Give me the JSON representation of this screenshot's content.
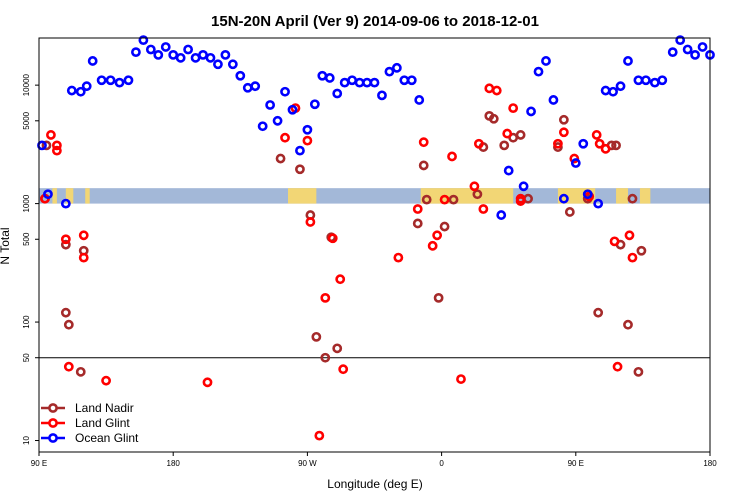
{
  "chart_data": {
    "type": "scatter",
    "title": "15N-20N April (Ver 9)   2014-09-06 to 2018-12-01",
    "xlabel": "Longitude (deg E)",
    "ylabel": "N Total",
    "x_scale": "linear",
    "y_scale": "log",
    "xlim": [
      90,
      540
    ],
    "ylim": [
      8,
      25000
    ],
    "x_ticks": [
      {
        "value": 90,
        "label": "90 E"
      },
      {
        "value": 180,
        "label": "180"
      },
      {
        "value": 270,
        "label": "90 W"
      },
      {
        "value": 360,
        "label": "0"
      },
      {
        "value": 450,
        "label": "90 E"
      },
      {
        "value": 540,
        "label": "180"
      }
    ],
    "y_ticks": [
      {
        "value": 10,
        "label": "10"
      },
      {
        "value": 50,
        "label": "50"
      },
      {
        "value": 100,
        "label": "100"
      },
      {
        "value": 500,
        "label": "500"
      },
      {
        "value": 1000,
        "label": "1000"
      },
      {
        "value": 5000,
        "label": "5000"
      },
      {
        "value": 10000,
        "label": "10000"
      }
    ],
    "reference_line": 50,
    "legend_position": "bottom-left",
    "colors": {
      "land_nadir": "#a52a2a",
      "land_glint": "#ff0000",
      "ocean_glint": "#0000ff",
      "ocean_band": "#a3b8d8",
      "land_band": "#f2d675"
    },
    "series": [
      {
        "name": "Land Nadir",
        "color": "#a52a2a",
        "points": [
          [
            94,
            1100
          ],
          [
            95,
            3100
          ],
          [
            108,
            450
          ],
          [
            108,
            120
          ],
          [
            110,
            95
          ],
          [
            118,
            38
          ],
          [
            120,
            400
          ],
          [
            252,
            2400
          ],
          [
            265,
            1950
          ],
          [
            272,
            800
          ],
          [
            276,
            75
          ],
          [
            282,
            50
          ],
          [
            286,
            520
          ],
          [
            290,
            60
          ],
          [
            344,
            680
          ],
          [
            348,
            2100
          ],
          [
            350,
            1080
          ],
          [
            358,
            160
          ],
          [
            362,
            640
          ],
          [
            368,
            1080
          ],
          [
            384,
            1200
          ],
          [
            388,
            3000
          ],
          [
            392,
            5500
          ],
          [
            395,
            5200
          ],
          [
            402,
            3100
          ],
          [
            408,
            3600
          ],
          [
            413,
            3800
          ],
          [
            418,
            1100
          ],
          [
            438,
            3000
          ],
          [
            442,
            5100
          ],
          [
            446,
            850
          ],
          [
            458,
            1100
          ],
          [
            465,
            120
          ],
          [
            474,
            3100
          ],
          [
            477,
            3100
          ],
          [
            480,
            450
          ],
          [
            485,
            95
          ],
          [
            488,
            1100
          ],
          [
            492,
            38
          ],
          [
            494,
            400
          ]
        ]
      },
      {
        "name": "Land Glint",
        "color": "#ff0000",
        "points": [
          [
            94,
            1100
          ],
          [
            98,
            3800
          ],
          [
            102,
            3100
          ],
          [
            102,
            2800
          ],
          [
            108,
            500
          ],
          [
            110,
            42
          ],
          [
            120,
            540
          ],
          [
            120,
            350
          ],
          [
            135,
            32
          ],
          [
            203,
            31
          ],
          [
            255,
            3600
          ],
          [
            262,
            6400
          ],
          [
            270,
            3400
          ],
          [
            272,
            700
          ],
          [
            278,
            11
          ],
          [
            282,
            160
          ],
          [
            287,
            510
          ],
          [
            292,
            230
          ],
          [
            294,
            40
          ],
          [
            331,
            350
          ],
          [
            344,
            900
          ],
          [
            348,
            3300
          ],
          [
            354,
            440
          ],
          [
            357,
            540
          ],
          [
            362,
            1080
          ],
          [
            367,
            2500
          ],
          [
            373,
            33
          ],
          [
            382,
            1400
          ],
          [
            385,
            3200
          ],
          [
            388,
            900
          ],
          [
            392,
            9400
          ],
          [
            397,
            9000
          ],
          [
            404,
            3900
          ],
          [
            408,
            6400
          ],
          [
            413,
            1100
          ],
          [
            413,
            1050
          ],
          [
            438,
            3200
          ],
          [
            442,
            4000
          ],
          [
            449,
            2400
          ],
          [
            459,
            1150
          ],
          [
            464,
            3800
          ],
          [
            466,
            3200
          ],
          [
            470,
            2900
          ],
          [
            476,
            480
          ],
          [
            478,
            42
          ],
          [
            486,
            540
          ],
          [
            488,
            350
          ]
        ]
      },
      {
        "name": "Ocean Glint",
        "color": "#0000ff",
        "points": [
          [
            92,
            3100
          ],
          [
            96,
            1200
          ],
          [
            108,
            1000
          ],
          [
            112,
            9000
          ],
          [
            118,
            8800
          ],
          [
            122,
            9800
          ],
          [
            126,
            16000
          ],
          [
            132,
            11000
          ],
          [
            138,
            11000
          ],
          [
            144,
            10500
          ],
          [
            150,
            11000
          ],
          [
            155,
            19000
          ],
          [
            160,
            24000
          ],
          [
            165,
            20000
          ],
          [
            170,
            18000
          ],
          [
            175,
            21000
          ],
          [
            180,
            18000
          ],
          [
            185,
            17000
          ],
          [
            190,
            20000
          ],
          [
            195,
            17000
          ],
          [
            200,
            18000
          ],
          [
            205,
            17000
          ],
          [
            210,
            15000
          ],
          [
            215,
            18000
          ],
          [
            220,
            15000
          ],
          [
            225,
            12000
          ],
          [
            230,
            9500
          ],
          [
            235,
            9800
          ],
          [
            240,
            4500
          ],
          [
            245,
            6800
          ],
          [
            250,
            5000
          ],
          [
            255,
            8800
          ],
          [
            260,
            6200
          ],
          [
            265,
            2800
          ],
          [
            270,
            4200
          ],
          [
            275,
            6900
          ],
          [
            280,
            12000
          ],
          [
            285,
            11500
          ],
          [
            290,
            8500
          ],
          [
            295,
            10500
          ],
          [
            300,
            11000
          ],
          [
            305,
            10500
          ],
          [
            310,
            10500
          ],
          [
            315,
            10500
          ],
          [
            320,
            8200
          ],
          [
            325,
            13000
          ],
          [
            330,
            14000
          ],
          [
            335,
            11000
          ],
          [
            340,
            11000
          ],
          [
            345,
            7500
          ],
          [
            400,
            800
          ],
          [
            405,
            1900
          ],
          [
            415,
            1400
          ],
          [
            420,
            6000
          ],
          [
            425,
            13000
          ],
          [
            430,
            16000
          ],
          [
            435,
            7500
          ],
          [
            442,
            1100
          ],
          [
            450,
            2200
          ],
          [
            455,
            3200
          ],
          [
            458,
            1200
          ],
          [
            465,
            1000
          ],
          [
            470,
            9000
          ],
          [
            475,
            8800
          ],
          [
            480,
            9800
          ],
          [
            485,
            16000
          ],
          [
            492,
            11000
          ],
          [
            497,
            11000
          ],
          [
            503,
            10500
          ],
          [
            508,
            11000
          ],
          [
            515,
            19000
          ],
          [
            520,
            24000
          ],
          [
            525,
            20000
          ],
          [
            530,
            18000
          ],
          [
            535,
            21000
          ],
          [
            540,
            18000
          ]
        ]
      }
    ],
    "band": {
      "y_low": 1000,
      "y_high": 1350,
      "land_segments": [
        [
          99,
          102
        ],
        [
          108,
          113
        ],
        [
          121,
          124
        ],
        [
          257,
          276
        ],
        [
          346,
          408
        ],
        [
          438,
          463
        ],
        [
          477,
          485
        ],
        [
          493,
          500
        ]
      ]
    }
  }
}
